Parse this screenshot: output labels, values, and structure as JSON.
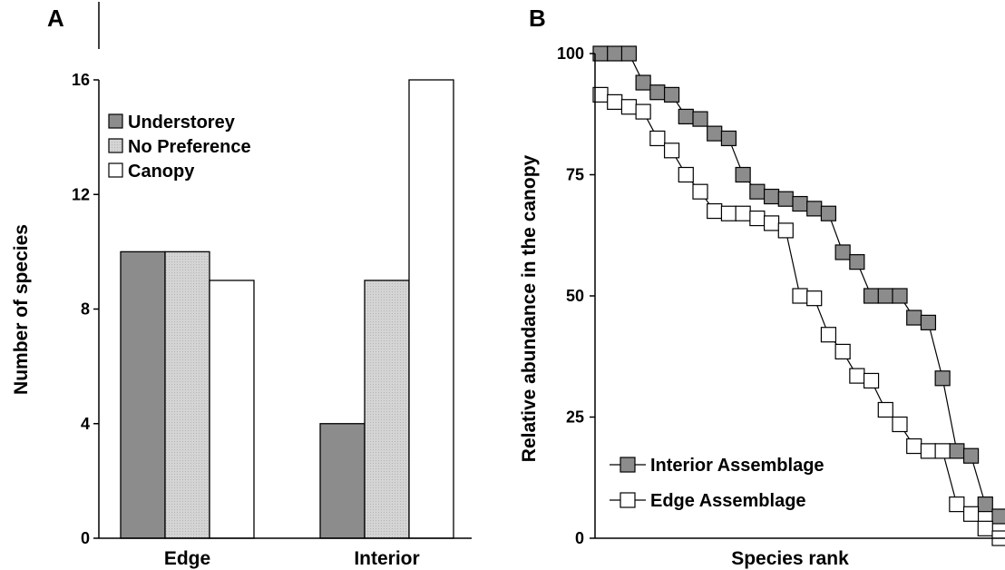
{
  "colors": {
    "understorey": "#8c8c8c",
    "no_preference": "#d4d4d4",
    "canopy": "#ffffff",
    "interior_marker": "#8c8c8c",
    "edge_marker": "#ffffff",
    "stroke": "#000000"
  },
  "chart_data": [
    {
      "panel": "A",
      "type": "bar",
      "ylabel": "Number of species",
      "xlabel": "",
      "categories": [
        "Edge",
        "Interior"
      ],
      "series": [
        {
          "name": "Understorey",
          "values": [
            10,
            4
          ]
        },
        {
          "name": "No Preference",
          "values": [
            10,
            9
          ]
        },
        {
          "name": "Canopy",
          "values": [
            9,
            16
          ]
        }
      ],
      "ylim": [
        0,
        16
      ],
      "yticks": [
        0,
        4,
        8,
        12,
        16
      ],
      "legend_position": "top-left",
      "grid": false
    },
    {
      "panel": "B",
      "type": "line",
      "ylabel": "Relative abundance in the canopy",
      "xlabel": "Species rank",
      "ylim": [
        0,
        100
      ],
      "yticks": [
        0,
        25,
        50,
        75,
        100
      ],
      "legend_position": "bottom-left",
      "grid": false,
      "series": [
        {
          "name": "Interior Assemblage",
          "values": [
            100,
            100,
            100,
            94,
            92,
            91.5,
            87,
            86.5,
            83.5,
            82.5,
            75,
            71.5,
            70.5,
            70,
            69,
            68,
            67,
            59,
            57,
            50,
            50,
            50,
            45.5,
            44.5,
            33,
            18,
            17,
            7,
            4.5
          ]
        },
        {
          "name": "Edge Assemblage",
          "values": [
            91.5,
            90,
            89,
            88,
            82.5,
            80,
            75,
            71.5,
            67.5,
            67,
            67,
            66,
            65,
            63.5,
            50,
            49.5,
            42,
            38.5,
            33.5,
            32.5,
            26.5,
            23.5,
            19,
            18,
            18,
            7,
            5,
            2,
            0
          ]
        }
      ]
    }
  ]
}
